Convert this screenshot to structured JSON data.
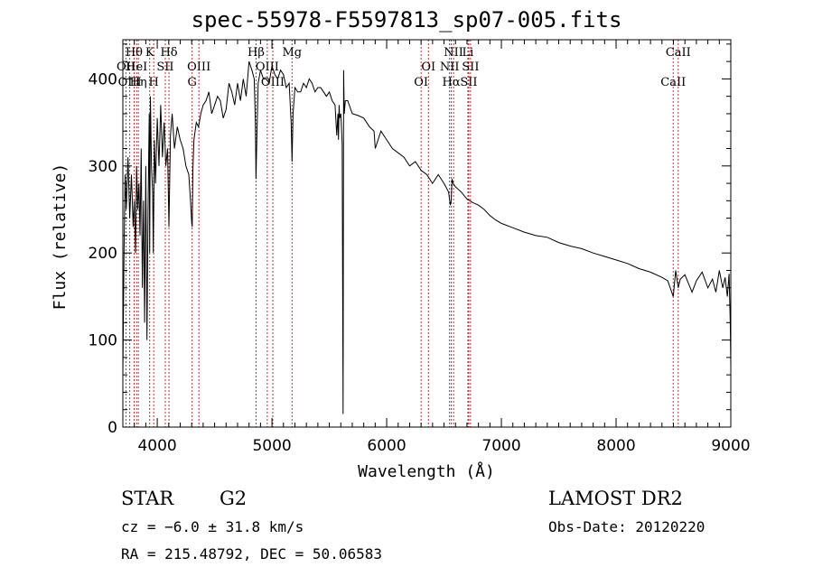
{
  "title": "spec-55978-F5597813_sp07-005.fits",
  "footer": {
    "object_class": "STAR",
    "subclass": "G2",
    "survey": "LAMOST DR2",
    "redshift": "cz = −6.0 ± 31.8 km/s",
    "obs_date": "Obs-Date: 20120220",
    "coords": "RA = 215.48792, DEC =  50.06583"
  },
  "chart_data": {
    "type": "line",
    "xlabel": "Wavelength (Å)",
    "ylabel": "Flux (relative)",
    "xlim": [
      3700,
      9000
    ],
    "ylim": [
      0,
      445
    ],
    "x_ticks": [
      4000,
      5000,
      6000,
      7000,
      8000,
      9000
    ],
    "y_ticks": [
      0,
      100,
      200,
      300,
      400
    ],
    "line_color": "#000000",
    "marker_color": "#c03030",
    "spectral_lines": [
      {
        "label": "Hθ",
        "wavelength": 3798,
        "row": 0
      },
      {
        "label": "K",
        "wavelength": 3934,
        "row": 0
      },
      {
        "label": "Hδ",
        "wavelength": 4102,
        "row": 0
      },
      {
        "label": "Hβ",
        "wavelength": 4861,
        "row": 0
      },
      {
        "label": "Mg",
        "wavelength": 5175,
        "row": 0
      },
      {
        "label": "NII",
        "wavelength": 6583,
        "row": 0
      },
      {
        "label": "Li",
        "wavelength": 6708,
        "row": 0
      },
      {
        "label": "CaII",
        "wavelength": 8542,
        "row": 0
      },
      {
        "label": "OII",
        "wavelength": 3727,
        "row": 1
      },
      {
        "label": "HeI",
        "wavelength": 3820,
        "row": 1
      },
      {
        "label": "SII",
        "wavelength": 4070,
        "row": 1
      },
      {
        "label": "OIII",
        "wavelength": 4363,
        "row": 1
      },
      {
        "label": "OIII",
        "wavelength": 4959,
        "row": 1
      },
      {
        "label": "OI",
        "wavelength": 6364,
        "row": 1
      },
      {
        "label": "NII",
        "wavelength": 6548,
        "row": 1
      },
      {
        "label": "SII",
        "wavelength": 6731,
        "row": 1
      },
      {
        "label": "OIII",
        "wavelength": 3760,
        "row": 2
      },
      {
        "label": "Hη",
        "wavelength": 3835,
        "row": 2
      },
      {
        "label": "H",
        "wavelength": 3969,
        "row": 2
      },
      {
        "label": "G",
        "wavelength": 4304,
        "row": 2
      },
      {
        "label": "OIII",
        "wavelength": 5007,
        "row": 2
      },
      {
        "label": "OI",
        "wavelength": 6300,
        "row": 2
      },
      {
        "label": "Hα",
        "wavelength": 6563,
        "row": 2
      },
      {
        "label": "SII",
        "wavelength": 6716,
        "row": 2
      },
      {
        "label": "CaII",
        "wavelength": 8498,
        "row": 2
      }
    ],
    "series": [
      {
        "x": [
          3700,
          3710,
          3720,
          3730,
          3745,
          3760,
          3775,
          3790,
          3800,
          3810,
          3820,
          3830,
          3840,
          3850,
          3860,
          3870,
          3880,
          3890,
          3900,
          3910,
          3920,
          3930,
          3934,
          3940,
          3950,
          3960,
          3965,
          3969,
          3975,
          3985,
          4000,
          4015,
          4030,
          4045,
          4060,
          4075,
          4090,
          4102,
          4115,
          4130,
          4150,
          4175,
          4200,
          4225,
          4250,
          4275,
          4290,
          4300,
          4305,
          4310,
          4320,
          4340,
          4360,
          4380,
          4400,
          4425,
          4450,
          4475,
          4500,
          4525,
          4550,
          4575,
          4600,
          4625,
          4650,
          4675,
          4700,
          4725,
          4750,
          4775,
          4800,
          4825,
          4845,
          4855,
          4861,
          4868,
          4880,
          4900,
          4925,
          4950,
          4975,
          5000,
          5025,
          5050,
          5075,
          5100,
          5125,
          5150,
          5167,
          5175,
          5184,
          5200,
          5225,
          5250,
          5275,
          5300,
          5325,
          5350,
          5375,
          5400,
          5425,
          5450,
          5475,
          5500,
          5525,
          5550,
          5565,
          5575,
          5580,
          5585,
          5590,
          5600,
          5612,
          5620,
          5625,
          5630,
          5640,
          5660,
          5700,
          5750,
          5800,
          5850,
          5890,
          5900,
          5950,
          6000,
          6050,
          6100,
          6150,
          6200,
          6250,
          6300,
          6350,
          6400,
          6450,
          6500,
          6540,
          6555,
          6563,
          6570,
          6580,
          6600,
          6650,
          6700,
          6750,
          6800,
          6850,
          6900,
          6950,
          7000,
          7100,
          7200,
          7300,
          7400,
          7500,
          7600,
          7700,
          7800,
          7900,
          8000,
          8100,
          8200,
          8300,
          8400,
          8450,
          8498,
          8520,
          8542,
          8560,
          8600,
          8662,
          8700,
          8750,
          8800,
          8840,
          8870,
          8900,
          8930,
          8950,
          8970,
          8985,
          8995,
          9000
        ],
        "y": [
          60,
          200,
          290,
          250,
          310,
          240,
          290,
          230,
          260,
          200,
          300,
          250,
          280,
          220,
          320,
          160,
          260,
          120,
          300,
          100,
          250,
          360,
          200,
          380,
          300,
          270,
          200,
          250,
          330,
          280,
          355,
          300,
          370,
          310,
          350,
          300,
          320,
          230,
          335,
          360,
          320,
          345,
          330,
          320,
          300,
          290,
          260,
          235,
          230,
          295,
          330,
          350,
          345,
          360,
          370,
          375,
          385,
          360,
          370,
          380,
          375,
          355,
          365,
          395,
          385,
          370,
          395,
          375,
          400,
          380,
          420,
          410,
          400,
          350,
          285,
          330,
          395,
          410,
          400,
          400,
          395,
          415,
          405,
          400,
          410,
          405,
          390,
          395,
          350,
          305,
          360,
          390,
          385,
          385,
          395,
          390,
          400,
          395,
          385,
          390,
          390,
          385,
          380,
          385,
          375,
          370,
          335,
          360,
          330,
          370,
          355,
          360,
          325,
          15,
          410,
          360,
          375,
          375,
          360,
          358,
          355,
          345,
          340,
          320,
          340,
          330,
          320,
          315,
          310,
          300,
          305,
          295,
          290,
          280,
          290,
          280,
          270,
          255,
          260,
          285,
          280,
          276,
          270,
          262,
          258,
          255,
          250,
          243,
          238,
          234,
          229,
          224,
          220,
          218,
          212,
          208,
          205,
          200,
          196,
          192,
          188,
          182,
          178,
          172,
          168,
          150,
          180,
          160,
          170,
          175,
          155,
          168,
          178,
          160,
          170,
          155,
          180,
          160,
          172,
          150,
          176,
          120,
          70
        ]
      }
    ]
  }
}
